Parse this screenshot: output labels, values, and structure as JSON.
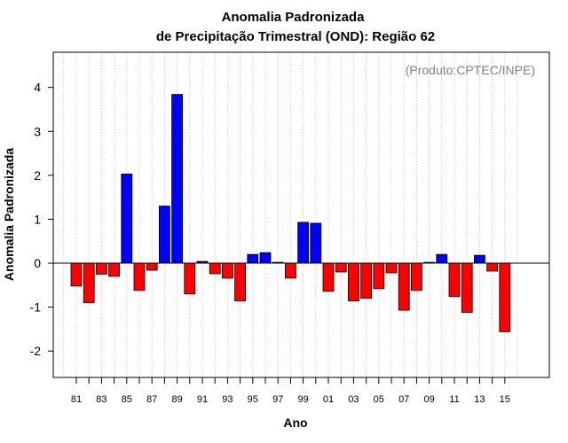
{
  "chart_data": {
    "type": "bar",
    "title_line1": "Anomalia Padronizada",
    "title_line2": "de Precipitação Trimestral (OND): Região 62",
    "xlabel": "Ano",
    "ylabel": "Anomalia Padronizada",
    "annotation": "(Produto:CPTEC/INPE)",
    "ylim": [
      -2.6,
      4.8
    ],
    "yticks": [
      -2,
      -1,
      0,
      1,
      2,
      3,
      4
    ],
    "grid": true,
    "colors": {
      "positive": "#0000ff",
      "negative": "#ff0000"
    },
    "x": [
      1981,
      1982,
      1983,
      1984,
      1985,
      1986,
      1987,
      1988,
      1989,
      1990,
      1991,
      1992,
      1993,
      1994,
      1995,
      1996,
      1997,
      1998,
      1999,
      2000,
      2001,
      2002,
      2003,
      2004,
      2005,
      2006,
      2007,
      2008,
      2009,
      2010,
      2011,
      2012,
      2013,
      2014,
      2015
    ],
    "values": [
      -0.52,
      -0.9,
      -0.25,
      -0.3,
      2.03,
      -0.62,
      -0.16,
      1.3,
      3.84,
      -0.7,
      0.04,
      -0.24,
      -0.34,
      -0.86,
      0.2,
      0.24,
      0.02,
      -0.34,
      0.93,
      0.91,
      -0.64,
      -0.2,
      -0.86,
      -0.8,
      -0.58,
      -0.22,
      -1.07,
      -0.62,
      0.02,
      0.2,
      -0.76,
      -1.12,
      0.18,
      -0.18,
      -1.56
    ],
    "xtick_labels": [
      "81",
      "83",
      "85",
      "87",
      "89",
      "91",
      "93",
      "95",
      "97",
      "99",
      "01",
      "03",
      "05",
      "07",
      "09",
      "11",
      "13",
      "15"
    ]
  }
}
